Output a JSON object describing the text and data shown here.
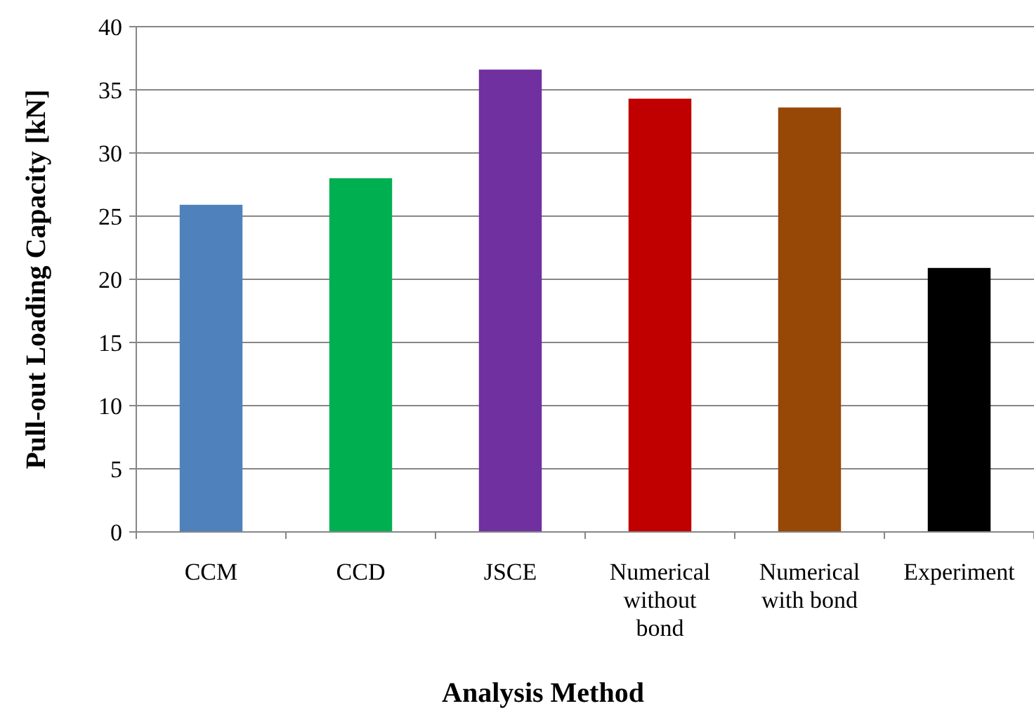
{
  "chart_data": {
    "type": "bar",
    "xlabel": "Analysis Method",
    "ylabel": "Pull-out Loading Capacity [kN]",
    "categories": [
      "CCM",
      "CCD",
      "JSCE",
      "Numerical without bond",
      "Numerical with bond",
      "Experiment"
    ],
    "values": [
      25.9,
      28.0,
      36.6,
      34.3,
      33.6,
      20.9
    ],
    "colors": [
      "#4f81bd",
      "#00b050",
      "#7030a0",
      "#c00000",
      "#974706",
      "#000000"
    ],
    "ylim": [
      0,
      40
    ],
    "yticks": [
      0,
      5,
      10,
      15,
      20,
      25,
      30,
      35,
      40
    ],
    "grid": "y"
  }
}
